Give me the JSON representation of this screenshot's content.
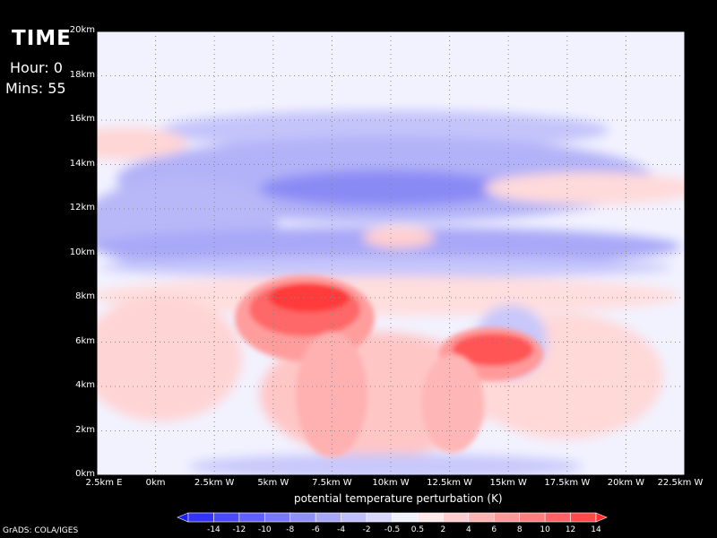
{
  "header": {
    "title": "TIME",
    "hour_label": "Hour:",
    "hour_value": "0",
    "mins_label": "Mins:",
    "mins_value": "55"
  },
  "footer": {
    "credit": "GrADS: COLA/IGES"
  },
  "chart_data": {
    "type": "heatmap",
    "title": "TIME",
    "xlabel": "potential temperature perturbation (K)",
    "ylabel": "",
    "x_ticks": [
      "2.5km E",
      "0km",
      "2.5km W",
      "5km W",
      "7.5km W",
      "10km W",
      "12.5km W",
      "15km W",
      "17.5km W",
      "20km W",
      "22.5km W"
    ],
    "x_values_km_west": [
      -2.5,
      0,
      2.5,
      5,
      7.5,
      10,
      12.5,
      15,
      17.5,
      20,
      22.5
    ],
    "xlim": [
      -2.5,
      22.5
    ],
    "y_ticks": [
      "0km",
      "2km",
      "4km",
      "6km",
      "8km",
      "10km",
      "12km",
      "14km",
      "16km",
      "18km",
      "20km"
    ],
    "y_values_km": [
      0,
      2,
      4,
      6,
      8,
      10,
      12,
      14,
      16,
      18,
      20
    ],
    "ylim": [
      0,
      20
    ],
    "grid": true,
    "colorbar": {
      "labels": [
        "-14",
        "-12",
        "-10",
        "-8",
        "-6",
        "-4",
        "-2",
        "-0.5",
        "0.5",
        "2",
        "4",
        "6",
        "8",
        "10",
        "12",
        "14"
      ],
      "colors": [
        "#1e1ef5",
        "#3434f6",
        "#4a4af7",
        "#6262f8",
        "#7878f9",
        "#9090fa",
        "#a8a8fb",
        "#c0c0fc",
        "#d8d8fd",
        "#f2f2ff",
        "#ffe8e8",
        "#ffcdcd",
        "#ffb3b3",
        "#ff9999",
        "#ff7f7f",
        "#ff6464",
        "#ff4a4a",
        "#ff2f2f"
      ],
      "extend": "both"
    },
    "features": [
      {
        "name": "warm thermal 1",
        "x_km": 6.5,
        "y_km": 6.8,
        "max_K": 14
      },
      {
        "name": "warm thermal 2",
        "x_km": 15.0,
        "y_km": 5.5,
        "max_K": 14
      },
      {
        "name": "cold layer",
        "x_km": 10.0,
        "y_km": 12.5,
        "min_K": -6
      },
      {
        "name": "warm layer",
        "x_km": 0.0,
        "y_km": 15.0,
        "max_K": 2
      }
    ]
  }
}
